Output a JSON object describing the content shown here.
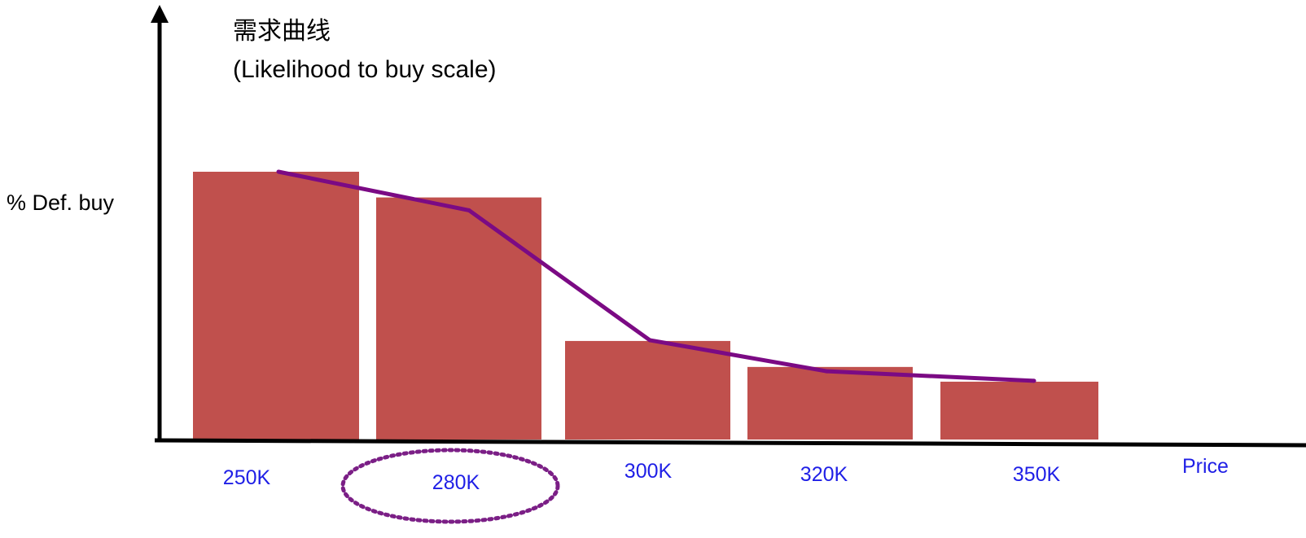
{
  "chart_data": {
    "type": "bar",
    "title": "需求曲线",
    "subtitle": "(Likelihood to buy scale)",
    "ylabel": "% Def. buy",
    "xlabel": "Price",
    "categories": [
      "250K",
      "280K",
      "300K",
      "320K",
      "350K"
    ],
    "series": [
      {
        "values": [
          100,
          90.4,
          36.8,
          27.1,
          21.6
        ]
      }
    ],
    "line_overlay": [
      100,
      85.6,
      37.1,
      25.5,
      21.9
    ],
    "ylim": [
      0,
      100
    ],
    "grid": false,
    "legend": "none",
    "highlighted_category": "280K",
    "colors": {
      "bar": "#c0504d",
      "line": "#7b0a84",
      "highlight": "#7b1f86",
      "tick_label": "#1f1fe6",
      "axis": "#000000"
    }
  }
}
